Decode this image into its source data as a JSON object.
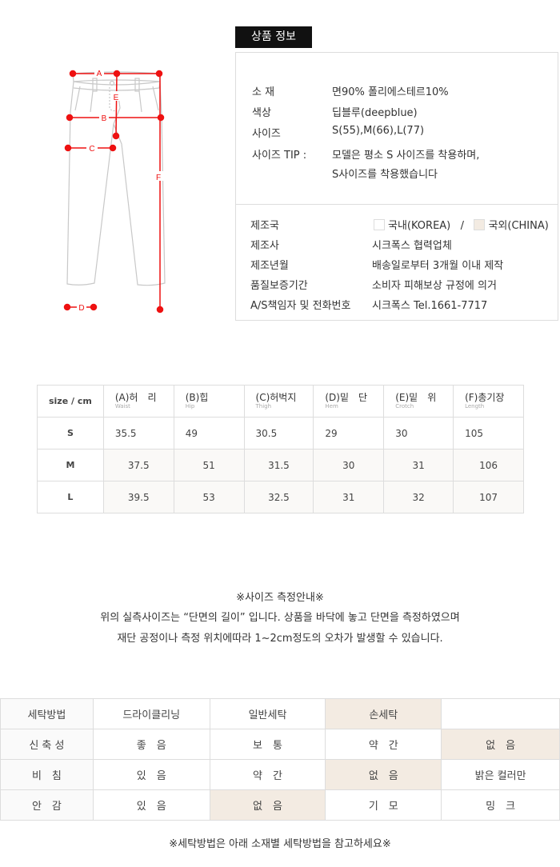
{
  "product_info": {
    "title": "상품 정보",
    "rows1": [
      {
        "label": "소 재",
        "value": "면90% 폴리에스테르10%"
      },
      {
        "label": "색상",
        "value": "딥블루(deepblue)"
      },
      {
        "label": "사이즈",
        "value": "S(55),M(66),L(77)"
      },
      {
        "label": "사이즈 TIP :",
        "value": "모델은 평소 S 사이즈를 착용하며,",
        "value2": "S사이즈를 착용했습니다"
      }
    ],
    "origin": {
      "label": "제조국",
      "korea": "국내(KOREA)",
      "sep": "/",
      "china": "국외(CHINA)",
      "selected": "china"
    },
    "rows2": [
      {
        "label": "제조사",
        "value": "시크폭스 협력업체"
      },
      {
        "label": "제조년월",
        "value": "배송일로부터 3개월 이내 제작"
      },
      {
        "label": "품질보증기간",
        "value": "소비자 피해보상 규정에 의거"
      },
      {
        "label": "A/S책임자 및 전화번호",
        "value": "시크폭스 Tel.1661-7717"
      }
    ]
  },
  "diagram": {
    "labels": [
      "A",
      "B",
      "C",
      "D",
      "E",
      "F"
    ],
    "accent": "#ee1111"
  },
  "size_table": {
    "corner": "size / cm",
    "headers": [
      {
        "ko": "(A)허　리",
        "en": "Waist"
      },
      {
        "ko": "(B)힙",
        "en": "Hip"
      },
      {
        "ko": "(C)허벅지",
        "en": "Thigh"
      },
      {
        "ko": "(D)밑　단",
        "en": "Hem"
      },
      {
        "ko": "(E)밑　위",
        "en": "Crotch"
      },
      {
        "ko": "(F)총기장",
        "en": "Length"
      }
    ],
    "rows": [
      {
        "size": "S",
        "values": [
          "35.5",
          "49",
          "30.5",
          "29",
          "30",
          "105"
        ]
      },
      {
        "size": "M",
        "values": [
          "37.5",
          "51",
          "31.5",
          "30",
          "31",
          "106"
        ]
      },
      {
        "size": "L",
        "values": [
          "39.5",
          "53",
          "32.5",
          "31",
          "32",
          "107"
        ]
      }
    ]
  },
  "notice": {
    "title": "※사이즈 측정안내※",
    "line1": "위의 실측사이즈는 “단면의 길이” 입니다. 상품을 바닥에 놓고 단면을 측정하였으며",
    "line2": "재단 공정이나 측정 위치에따라 1~2cm정도의 오차가 발생할 수 있습니다."
  },
  "wash_table": {
    "highlight_color": "#f3ebe2",
    "rows": [
      {
        "label": "세탁방법",
        "cells": [
          "드라이클리닝",
          "일반세탁",
          "손세탁",
          ""
        ],
        "selected": 2
      },
      {
        "label": "신 축 성",
        "cells": [
          "좋　음",
          "보　통",
          "약　간",
          "없　음"
        ],
        "selected": 3
      },
      {
        "label": "비　침",
        "cells": [
          "있　음",
          "약　간",
          "없　음",
          "밝은 컬러만"
        ],
        "selected": 2
      },
      {
        "label": "안　감",
        "cells": [
          "있　음",
          "없　음",
          "기　모",
          "밍　크"
        ],
        "selected": 1
      }
    ]
  },
  "footer_note": "※세탁방법은 아래 소재별 세탁방법을 참고하세요※"
}
